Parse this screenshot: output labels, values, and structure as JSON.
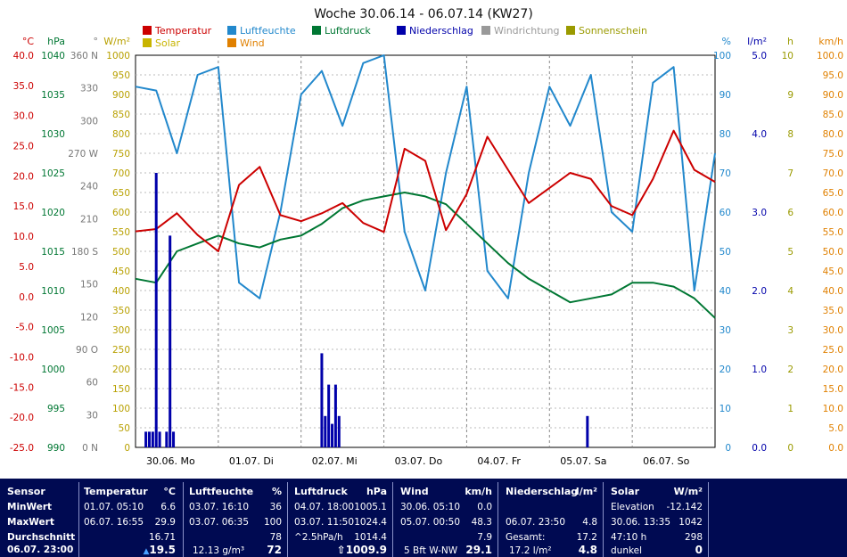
{
  "chart_data": {
    "type": "line",
    "title": "Woche 30.06.14 - 06.07.14 (KW27)",
    "x_categories": [
      "30.06. Mo",
      "01.07. Di",
      "02.07. Mi",
      "03.07. Do",
      "04.07. Fr",
      "05.07. Sa",
      "06.07. So"
    ],
    "legend": [
      {
        "name": "Temperatur",
        "color": "#cc0000"
      },
      {
        "name": "Luftfeuchte",
        "color": "#2288cc"
      },
      {
        "name": "Luftdruck",
        "color": "#007733"
      },
      {
        "name": "Niederschlag",
        "color": "#0000aa"
      },
      {
        "name": "Windrichtung",
        "color": "#999999"
      },
      {
        "name": "Sonnenschein",
        "color": "#9a9a00"
      },
      {
        "name": "Solar",
        "color": "#c8b400"
      },
      {
        "name": "Wind",
        "color": "#e08000"
      }
    ],
    "axes": {
      "temp": {
        "unit": "°C",
        "color": "#cc0000",
        "ticks": [
          "40.0",
          "35.0",
          "30.0",
          "25.0",
          "20.0",
          "15.0",
          "10.0",
          "5.0",
          "0.0",
          "-5.0",
          "-10.0",
          "-15.0",
          "-20.0",
          "-25.0"
        ]
      },
      "pressure": {
        "unit": "hPa",
        "color": "#007733",
        "ticks": [
          "1040",
          "1035",
          "1030",
          "1025",
          "1020",
          "1015",
          "1010",
          "1005",
          "1000",
          "995",
          "990"
        ]
      },
      "direction": {
        "unit": "°",
        "color": "#777777",
        "ticks": [
          "360 N",
          "330",
          "300",
          "270 W",
          "240",
          "210",
          "180 S",
          "150",
          "120",
          "90 O",
          "60",
          "30",
          "0 N"
        ]
      },
      "solar": {
        "unit": "W/m²",
        "color": "#b8a000",
        "ticks": [
          "1000",
          "950",
          "900",
          "850",
          "800",
          "750",
          "700",
          "650",
          "600",
          "550",
          "500",
          "450",
          "400",
          "350",
          "300",
          "250",
          "200",
          "150",
          "100",
          "50",
          "0"
        ]
      },
      "humidity": {
        "unit": "%",
        "color": "#2288cc",
        "ticks": [
          "100",
          "90",
          "80",
          "70",
          "60",
          "50",
          "40",
          "30",
          "20",
          "10",
          "0"
        ]
      },
      "rain": {
        "unit": "l/m²",
        "color": "#0000aa",
        "ticks": [
          "5.0",
          "4.0",
          "3.0",
          "2.0",
          "1.0",
          "0.0"
        ]
      },
      "sunshine": {
        "unit": "h",
        "color": "#9a9a00",
        "ticks": [
          "10",
          "9",
          "8",
          "7",
          "6",
          "5",
          "4",
          "3",
          "2",
          "1",
          "0"
        ]
      },
      "wind": {
        "unit": "km/h",
        "color": "#e08000",
        "ticks": [
          "100.0",
          "95.0",
          "90.0",
          "85.0",
          "80.0",
          "75.0",
          "70.0",
          "65.0",
          "60.0",
          "55.0",
          "50.0",
          "45.0",
          "40.0",
          "35.0",
          "30.0",
          "25.0",
          "20.0",
          "15.0",
          "10.0",
          "5.0",
          "0.0"
        ]
      }
    },
    "series": {
      "temperature": {
        "x_hours": [
          0,
          6,
          12,
          18,
          24,
          30,
          36,
          42,
          48,
          54,
          60,
          66,
          72,
          78,
          84,
          90,
          96,
          102,
          108,
          114,
          120,
          126,
          132,
          138,
          144,
          150,
          156,
          162,
          168
        ],
        "values": [
          10.8,
          11.2,
          13.8,
          10.2,
          7.5,
          18.5,
          21.5,
          13.5,
          12.5,
          13.8,
          15.5,
          12.2,
          10.7,
          24.5,
          22.5,
          11.0,
          17.0,
          26.5,
          21.0,
          15.5,
          18.0,
          20.5,
          19.5,
          15.0,
          13.5,
          19.5,
          27.5,
          21.0,
          19.0
        ]
      },
      "humidity": {
        "x_hours": [
          0,
          6,
          12,
          18,
          24,
          30,
          36,
          42,
          48,
          54,
          60,
          66,
          72,
          78,
          84,
          90,
          96,
          102,
          108,
          114,
          120,
          126,
          132,
          138,
          144,
          150,
          156,
          162,
          168
        ],
        "values": [
          92,
          91,
          75,
          95,
          97,
          42,
          38,
          60,
          90,
          96,
          82,
          98,
          100,
          55,
          40,
          70,
          92,
          45,
          38,
          70,
          92,
          82,
          95,
          60,
          55,
          93,
          97,
          40,
          75
        ]
      },
      "pressure": {
        "x_hours": [
          0,
          6,
          12,
          18,
          24,
          30,
          36,
          42,
          48,
          54,
          60,
          66,
          72,
          78,
          84,
          90,
          96,
          102,
          108,
          114,
          120,
          126,
          132,
          138,
          144,
          150,
          156,
          162,
          168
        ],
        "values": [
          1011.5,
          1011.0,
          1015.0,
          1016.0,
          1017.0,
          1016.0,
          1015.5,
          1016.5,
          1017.0,
          1018.5,
          1020.5,
          1021.5,
          1022.0,
          1022.5,
          1022.0,
          1021.0,
          1018.5,
          1016.0,
          1013.5,
          1011.5,
          1010.0,
          1008.5,
          1009.0,
          1009.5,
          1011.0,
          1011.0,
          1010.5,
          1009.0,
          1006.5
        ]
      },
      "precipitation": {
        "x_hours": [
          3,
          4,
          5,
          6,
          7,
          9,
          10,
          11,
          54,
          55,
          56,
          57,
          58,
          59,
          131
        ],
        "values": [
          0.2,
          0.2,
          0.2,
          3.5,
          0.2,
          0.2,
          2.7,
          0.2,
          1.2,
          0.4,
          0.8,
          0.3,
          0.8,
          0.4,
          0.4
        ]
      }
    }
  },
  "stats": {
    "sensor": {
      "title": "Sensor",
      "rows": [
        "MinWert",
        "MaxWert",
        "Durchschnitt"
      ],
      "current": "06.07. 23:00"
    },
    "temperature": {
      "title": "Temperatur",
      "unit": "°C",
      "min_time": "01.07. 05:10",
      "min": "6.6",
      "max_time": "06.07. 16:55",
      "max": "29.9",
      "avg": "16.71",
      "current": "19.5",
      "trend": "▲"
    },
    "humidity": {
      "title": "Luftfeuchte",
      "unit": "%",
      "min_time": "03.07. 16:10",
      "min": "36",
      "max_time": "03.07. 06:35",
      "max": "100",
      "avg": "78",
      "extra": "12.13 g/m³",
      "current": "72"
    },
    "pressure": {
      "title": "Luftdruck",
      "unit": "hPa",
      "min_time": "04.07. 18:00",
      "min": "1005.1",
      "max_time": "03.07. 11:50",
      "max": "1024.4",
      "trend_label": "^2.5hPa/h",
      "avg": "1014.4",
      "current": "1009.9",
      "trend": "⇧"
    },
    "wind": {
      "title": "Wind",
      "unit": "km/h",
      "min_time": "30.06. 05:10",
      "min": "0.0",
      "max_time": "05.07. 00:50",
      "max": "48.3",
      "avg": "7.9",
      "extra": "5 Bft W-NW",
      "current": "29.1"
    },
    "rain": {
      "title": "Niederschlag",
      "unit": "l/m²",
      "max_time": "06.07. 23:50",
      "max": "4.8",
      "total_label": "Gesamt:",
      "total": "17.2",
      "extra": "17.2 l/m²",
      "current": "4.8"
    },
    "solar": {
      "title": "Solar",
      "unit": "W/m²",
      "r1_label": "Elevation",
      "r1_val": "-12.142",
      "r2_label": "30.06. 13:35",
      "r2_val": "1042",
      "r3_label": "47:10 h",
      "r3_val": "298",
      "r4_label": "dunkel",
      "r4_val": "0"
    }
  }
}
